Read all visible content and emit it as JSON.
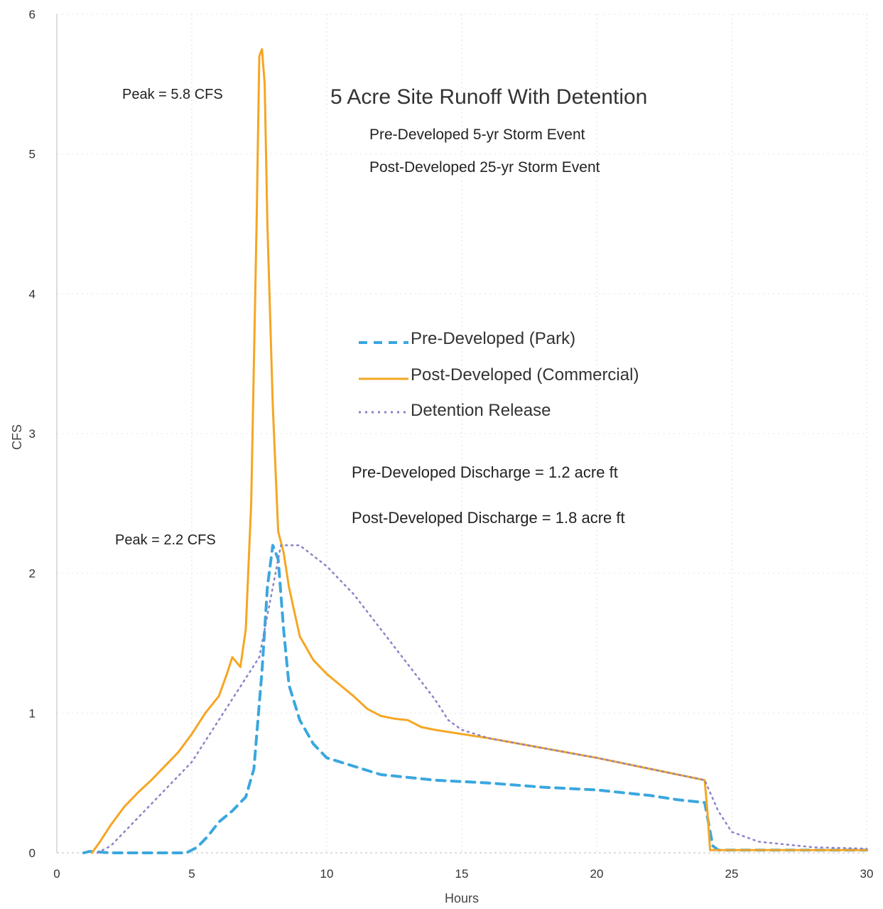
{
  "chart_data": {
    "type": "line",
    "title": "5 Acre Site Runoff With Detention",
    "subtitles": [
      "Pre-Developed 5-yr Storm Event",
      "Post-Developed 25-yr Storm Event"
    ],
    "xlabel": "Hours",
    "ylabel": "CFS",
    "xlim": [
      0,
      30
    ],
    "ylim": [
      0,
      6
    ],
    "xticks": [
      0,
      5,
      10,
      15,
      20,
      25,
      30
    ],
    "yticks": [
      0,
      1,
      2,
      3,
      4,
      5,
      6
    ],
    "grid": true,
    "legend_position": "center-right",
    "annotations": [
      {
        "text": "Peak = 5.8 CFS"
      },
      {
        "text": "Peak = 2.2 CFS"
      },
      {
        "text": "Pre-Developed Discharge = 1.2 acre ft"
      },
      {
        "text": "Post-Developed Discharge = 1.8 acre ft"
      }
    ],
    "series": [
      {
        "name": "Pre-Developed (Park)",
        "color": "#3aa7e0",
        "style": "dashed",
        "points": [
          [
            1.0,
            0
          ],
          [
            1.2,
            0.01
          ],
          [
            2.0,
            0
          ],
          [
            3.0,
            0
          ],
          [
            4.0,
            0
          ],
          [
            4.8,
            0
          ],
          [
            5.2,
            0.04
          ],
          [
            5.6,
            0.12
          ],
          [
            6.0,
            0.22
          ],
          [
            6.5,
            0.3
          ],
          [
            7.0,
            0.4
          ],
          [
            7.3,
            0.6
          ],
          [
            7.6,
            1.3
          ],
          [
            7.8,
            1.9
          ],
          [
            8.0,
            2.2
          ],
          [
            8.2,
            2.1
          ],
          [
            8.4,
            1.6
          ],
          [
            8.6,
            1.2
          ],
          [
            9.0,
            0.95
          ],
          [
            9.5,
            0.78
          ],
          [
            10.0,
            0.68
          ],
          [
            11.0,
            0.62
          ],
          [
            12.0,
            0.56
          ],
          [
            13.0,
            0.54
          ],
          [
            14.0,
            0.52
          ],
          [
            15.0,
            0.51
          ],
          [
            16.0,
            0.5
          ],
          [
            18.0,
            0.47
          ],
          [
            20.0,
            0.45
          ],
          [
            22.0,
            0.41
          ],
          [
            23.0,
            0.38
          ],
          [
            24.0,
            0.36
          ],
          [
            24.3,
            0.05
          ],
          [
            24.5,
            0.02
          ],
          [
            25.0,
            0.02
          ],
          [
            30.0,
            0.02
          ]
        ]
      },
      {
        "name": "Post-Developed (Commercial)",
        "color": "#f5a623",
        "style": "solid",
        "points": [
          [
            1.3,
            0
          ],
          [
            1.6,
            0.08
          ],
          [
            2.0,
            0.2
          ],
          [
            2.5,
            0.33
          ],
          [
            3.0,
            0.43
          ],
          [
            3.5,
            0.52
          ],
          [
            4.0,
            0.62
          ],
          [
            4.5,
            0.72
          ],
          [
            5.0,
            0.85
          ],
          [
            5.5,
            1.0
          ],
          [
            6.0,
            1.12
          ],
          [
            6.3,
            1.28
          ],
          [
            6.5,
            1.4
          ],
          [
            6.8,
            1.33
          ],
          [
            7.0,
            1.6
          ],
          [
            7.2,
            2.5
          ],
          [
            7.4,
            4.5
          ],
          [
            7.5,
            5.7
          ],
          [
            7.6,
            5.75
          ],
          [
            7.7,
            5.5
          ],
          [
            7.8,
            4.5
          ],
          [
            8.0,
            3.2
          ],
          [
            8.2,
            2.3
          ],
          [
            8.4,
            2.15
          ],
          [
            8.6,
            1.9
          ],
          [
            9.0,
            1.55
          ],
          [
            9.5,
            1.38
          ],
          [
            10.0,
            1.28
          ],
          [
            10.5,
            1.2
          ],
          [
            11.0,
            1.12
          ],
          [
            11.5,
            1.03
          ],
          [
            12.0,
            0.98
          ],
          [
            12.5,
            0.96
          ],
          [
            13.0,
            0.95
          ],
          [
            13.5,
            0.9
          ],
          [
            14.0,
            0.88
          ],
          [
            16.0,
            0.82
          ],
          [
            18.0,
            0.75
          ],
          [
            20.0,
            0.68
          ],
          [
            22.0,
            0.6
          ],
          [
            24.0,
            0.52
          ],
          [
            24.1,
            0.3
          ],
          [
            24.2,
            0.02
          ],
          [
            25.0,
            0.02
          ],
          [
            30.0,
            0.02
          ]
        ]
      },
      {
        "name": "Detention Release",
        "color": "#8a83c7",
        "style": "dotted",
        "points": [
          [
            1.5,
            0
          ],
          [
            2.0,
            0.05
          ],
          [
            2.5,
            0.15
          ],
          [
            3.0,
            0.25
          ],
          [
            3.5,
            0.35
          ],
          [
            4.0,
            0.45
          ],
          [
            4.5,
            0.55
          ],
          [
            5.0,
            0.65
          ],
          [
            5.5,
            0.8
          ],
          [
            6.0,
            0.95
          ],
          [
            6.5,
            1.1
          ],
          [
            7.0,
            1.25
          ],
          [
            7.5,
            1.4
          ],
          [
            8.0,
            1.9
          ],
          [
            8.3,
            2.2
          ],
          [
            9.0,
            2.2
          ],
          [
            10.0,
            2.05
          ],
          [
            11.0,
            1.85
          ],
          [
            12.0,
            1.6
          ],
          [
            13.0,
            1.35
          ],
          [
            14.0,
            1.1
          ],
          [
            14.5,
            0.95
          ],
          [
            15.0,
            0.88
          ],
          [
            16.0,
            0.82
          ],
          [
            18.0,
            0.75
          ],
          [
            20.0,
            0.68
          ],
          [
            22.0,
            0.6
          ],
          [
            24.0,
            0.52
          ],
          [
            24.5,
            0.3
          ],
          [
            25.0,
            0.15
          ],
          [
            26.0,
            0.08
          ],
          [
            28.0,
            0.04
          ],
          [
            30.0,
            0.03
          ]
        ]
      }
    ]
  }
}
